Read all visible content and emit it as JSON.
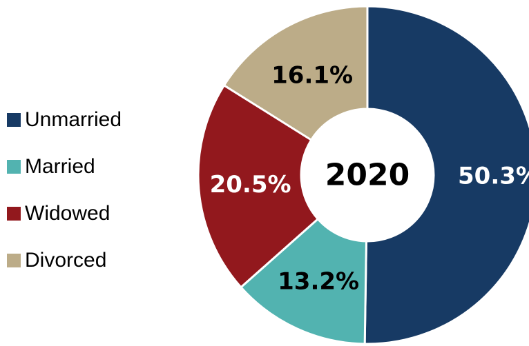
{
  "chart_data": {
    "type": "pie",
    "donut": true,
    "center_label": "2020",
    "categories": [
      "Unmarried",
      "Married",
      "Widowed",
      "Divorced"
    ],
    "values": [
      50.3,
      13.2,
      20.5,
      16.1
    ],
    "data_labels": [
      "50.3%",
      "13.2%",
      "20.5%",
      "16.1%"
    ],
    "colors": [
      "#173A64",
      "#52B3B0",
      "#92181D",
      "#BCAC88"
    ],
    "label_colors": [
      "#ffffff",
      "#000000",
      "#ffffff",
      "#000000"
    ],
    "legend_position": "left",
    "start_angle": "top, clockwise"
  }
}
